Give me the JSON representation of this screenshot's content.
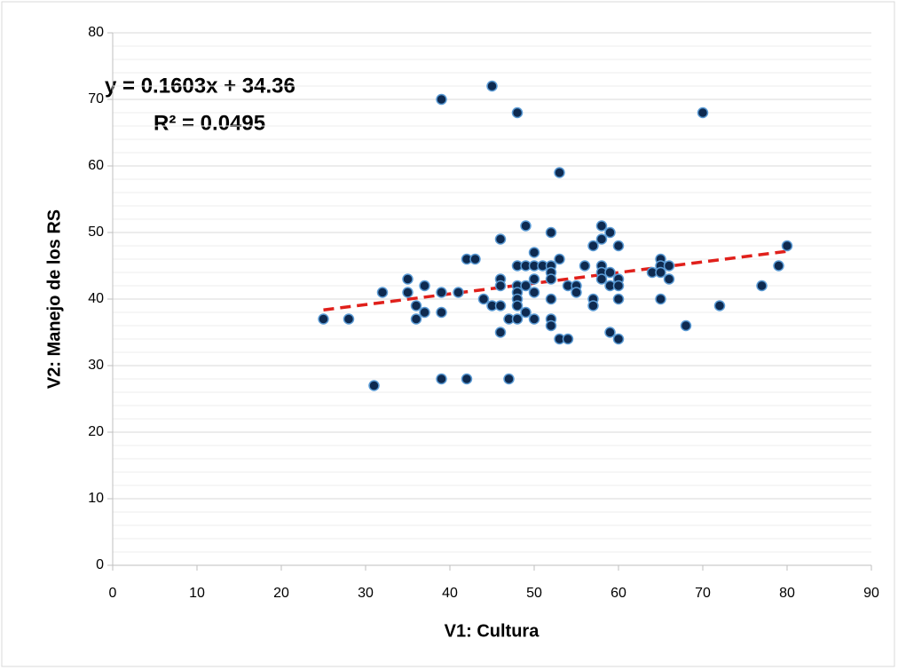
{
  "chart_data": {
    "type": "scatter",
    "x_label": "V1: Cultura",
    "y_label": "V2: Manejo de los RS",
    "xlim": [
      0,
      90
    ],
    "xticks": [
      0,
      10,
      20,
      30,
      40,
      50,
      60,
      70,
      80,
      90
    ],
    "ylim": [
      0,
      80
    ],
    "yticks": [
      0,
      10,
      20,
      30,
      40,
      50,
      60,
      70,
      80
    ],
    "grid": true,
    "minor_grid": true,
    "color": "#0e2a50",
    "edge_color": "#5b9bd5",
    "x": [
      25,
      28,
      31,
      32,
      35,
      35,
      36,
      36,
      37,
      37,
      39,
      39,
      39,
      39,
      41,
      42,
      42,
      43,
      44,
      45,
      45,
      46,
      46,
      46,
      46,
      46,
      47,
      47,
      48,
      48,
      48,
      48,
      48,
      48,
      48,
      49,
      49,
      49,
      49,
      50,
      50,
      50,
      50,
      50,
      51,
      52,
      52,
      52,
      52,
      52,
      52,
      52,
      53,
      53,
      53,
      54,
      54,
      55,
      55,
      56,
      57,
      57,
      57,
      58,
      58,
      58,
      58,
      58,
      59,
      59,
      59,
      59,
      60,
      60,
      60,
      60,
      60,
      64,
      65,
      65,
      65,
      65,
      66,
      66,
      68,
      70,
      72,
      77,
      79,
      80
    ],
    "y": [
      37,
      37,
      27,
      41,
      43,
      41,
      39,
      37,
      42,
      38,
      41,
      38,
      28,
      70,
      41,
      46,
      28,
      46,
      40,
      39,
      72,
      49,
      43,
      42,
      39,
      35,
      37,
      28,
      68,
      45,
      42,
      41,
      40,
      39,
      37,
      51,
      45,
      42,
      38,
      47,
      45,
      43,
      41,
      37,
      45,
      50,
      45,
      44,
      43,
      40,
      37,
      36,
      59,
      46,
      34,
      42,
      34,
      42,
      41,
      45,
      48,
      40,
      39,
      51,
      49,
      45,
      44,
      43,
      50,
      44,
      42,
      35,
      48,
      43,
      42,
      40,
      34,
      44,
      46,
      45,
      44,
      40,
      45,
      43,
      36,
      68,
      39,
      42,
      45,
      48
    ],
    "trendline": {
      "equation": "y = 0.1603x + 34.36",
      "r2": "R² = 0.0495",
      "slope": 0.1603,
      "intercept": 34.36,
      "color": "#e0201b"
    }
  }
}
